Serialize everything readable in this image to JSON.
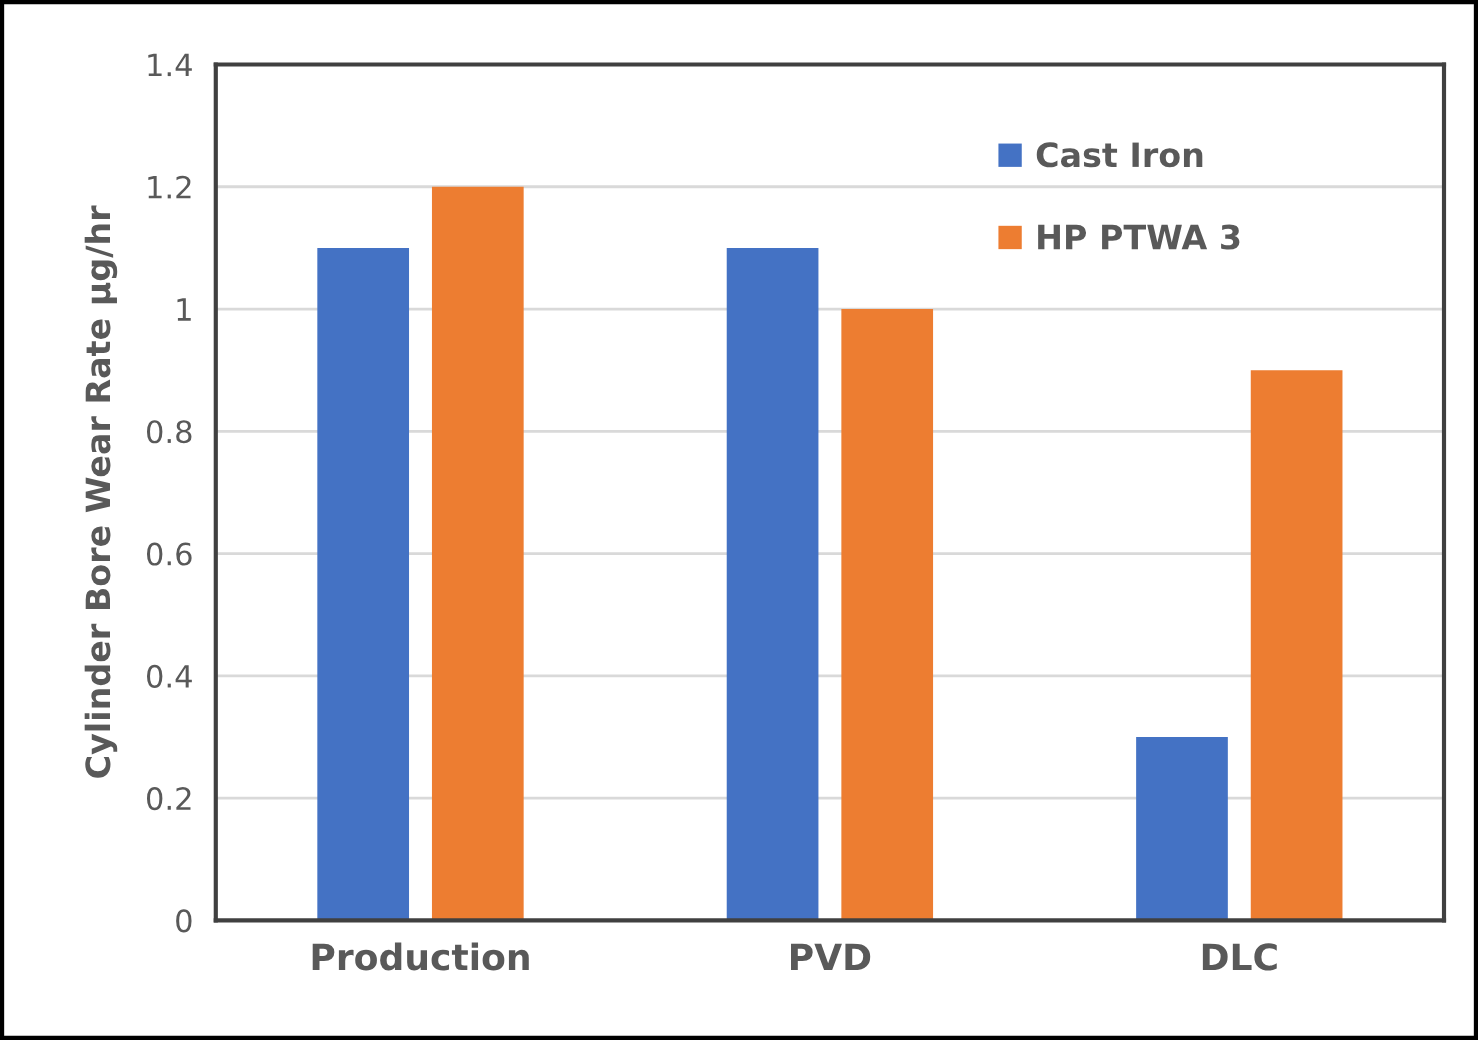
{
  "chart_data": {
    "type": "bar",
    "ylabel": "Cylinder Bore Wear Rate μg/hr",
    "categories": [
      "Production",
      "PVD",
      "DLC"
    ],
    "series": [
      {
        "name": "Cast Iron",
        "color": "#4472c4",
        "values": [
          1.1,
          1.1,
          0.3
        ]
      },
      {
        "name": "HP PTWA 3",
        "color": "#ed7d31",
        "values": [
          1.2,
          1.0,
          0.9
        ]
      }
    ],
    "ylim": [
      0,
      1.4
    ],
    "yticks": [
      0,
      0.2,
      0.4,
      0.6,
      0.8,
      1,
      1.2,
      1.4
    ],
    "grid": "y",
    "legend": "top right"
  }
}
